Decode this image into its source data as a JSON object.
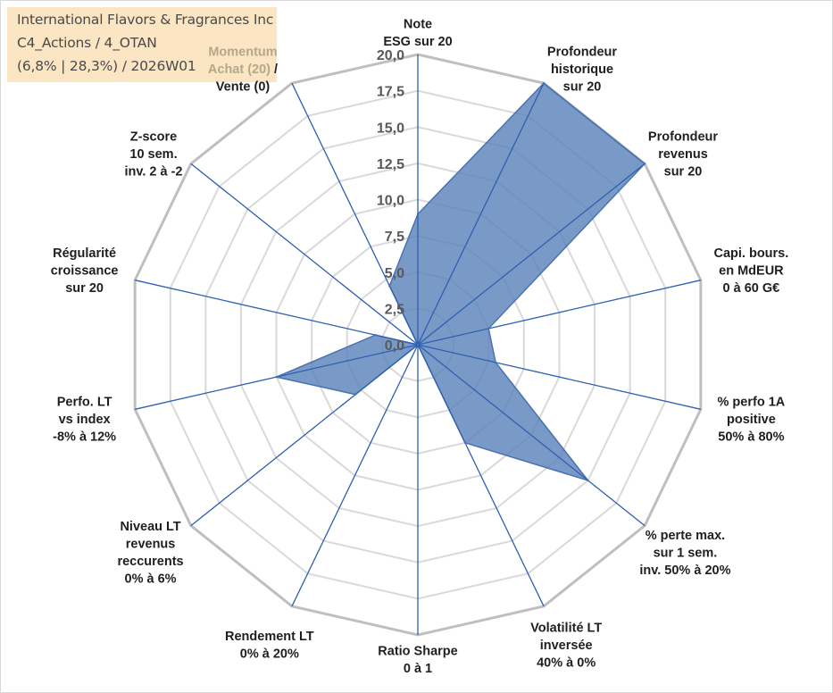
{
  "header": {
    "line1": "International Flavors & Fragrances Inc",
    "line2": "C4_Actions / 4_OTAN",
    "line3": "(6,8% | 28,3%) / 2026W01"
  },
  "colors": {
    "fill": "#5b84bb",
    "stroke": "#4a72b0",
    "spoke": "#2e5fb0",
    "ring": "#bfbfbf",
    "title_bg": "#fbe5c3"
  },
  "chart_data": {
    "type": "radar",
    "title": "International Flavors & Fragrances Inc",
    "rmin": 0,
    "rmax": 20,
    "ticks": [
      "0,0",
      "2,5",
      "5,0",
      "7,5",
      "10,0",
      "12,5",
      "15,0",
      "17,5",
      "20,0"
    ],
    "axes": [
      {
        "lines": [
          "Note",
          "ESG sur 20"
        ],
        "value": 9
      },
      {
        "lines": [
          "Profondeur",
          "historique",
          "sur 20"
        ],
        "value": 20
      },
      {
        "lines": [
          "Profondeur",
          "revenus",
          "sur 20"
        ],
        "value": 20
      },
      {
        "lines": [
          "Capi. bours.",
          "en MdEUR",
          "0 à 60 G€"
        ],
        "value": 5
      },
      {
        "lines": [
          "% perfo 1A",
          "positive",
          "50% à 80%"
        ],
        "value": 5.5
      },
      {
        "lines": [
          "% perte max.",
          "sur 1 sem.",
          "inv. 50% à 20%"
        ],
        "value": 15
      },
      {
        "lines": [
          "Volatilité LT",
          "inversée",
          "40% à 0%"
        ],
        "value": 7.5
      },
      {
        "lines": [
          "Ratio Sharpe",
          "0 à 1"
        ],
        "value": 0
      },
      {
        "lines": [
          "Rendement LT",
          "0% à 20%"
        ],
        "value": 0
      },
      {
        "lines": [
          "Niveau LT",
          "revenus",
          "reccurents",
          "0% à 6%"
        ],
        "value": 5.5
      },
      {
        "lines": [
          "Perfo. LT",
          "vs index",
          "-8% à 12%"
        ],
        "value": 10
      },
      {
        "lines": [
          "Régularité",
          "croissance",
          "sur 20"
        ],
        "value": 3
      },
      {
        "lines": [
          "Z-score",
          "10 sem.",
          "inv. 2 à -2"
        ],
        "value": 0
      },
      {
        "lines": [
          "Momentum",
          "Achat (20) /",
          "Vente (0)"
        ],
        "value": 4.5
      }
    ]
  }
}
